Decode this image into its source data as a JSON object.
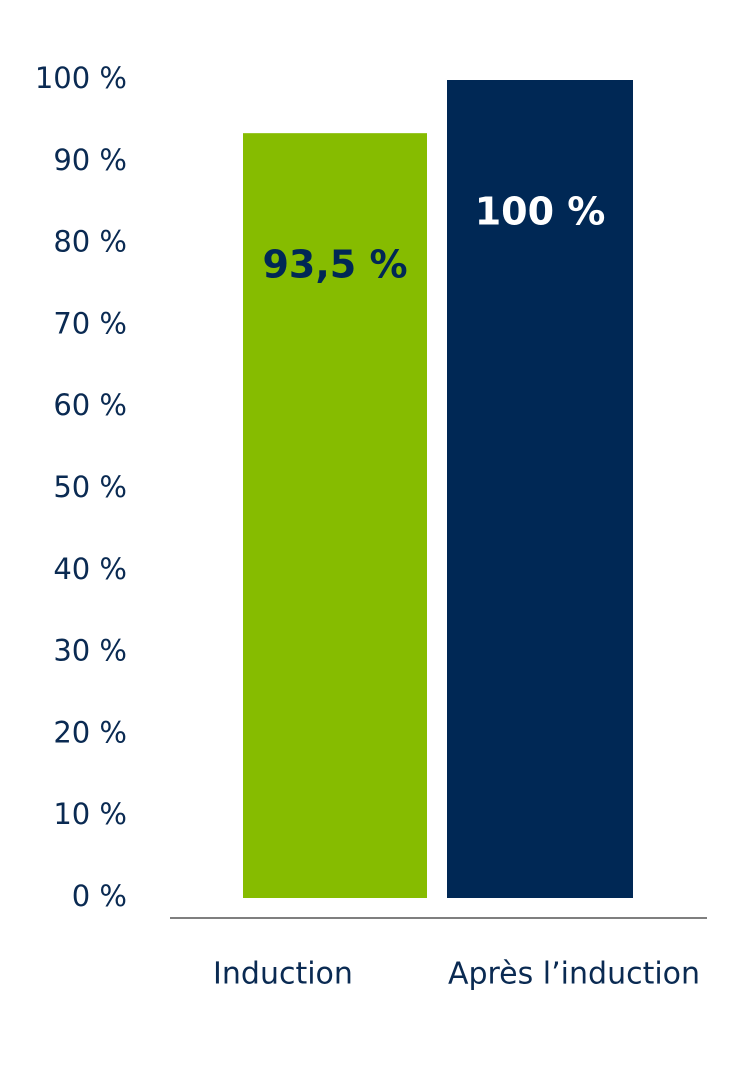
{
  "chart_data": {
    "type": "bar",
    "categories": [
      "Induction",
      "Après l’induction"
    ],
    "series": [
      {
        "colors": [
          "#86bc00",
          "#002855"
        ],
        "label_colors": [
          "#002855",
          "#ffffff"
        ],
        "values": [
          93.5,
          100
        ],
        "value_labels": [
          "93,5 %",
          "100 %"
        ]
      }
    ],
    "ylim": [
      0,
      100
    ],
    "yticks": [
      {
        "value": 0,
        "label": "0 %"
      },
      {
        "value": 10,
        "label": "10 %"
      },
      {
        "value": 20,
        "label": "20 %"
      },
      {
        "value": 30,
        "label": "30 %"
      },
      {
        "value": 40,
        "label": "40 %"
      },
      {
        "value": 50,
        "label": "50 %"
      },
      {
        "value": 60,
        "label": "60 %"
      },
      {
        "value": 70,
        "label": "70 %"
      },
      {
        "value": 80,
        "label": "80 %"
      },
      {
        "value": 90,
        "label": "90 %"
      },
      {
        "value": 100,
        "label": "100 %"
      }
    ],
    "grid": false
  }
}
